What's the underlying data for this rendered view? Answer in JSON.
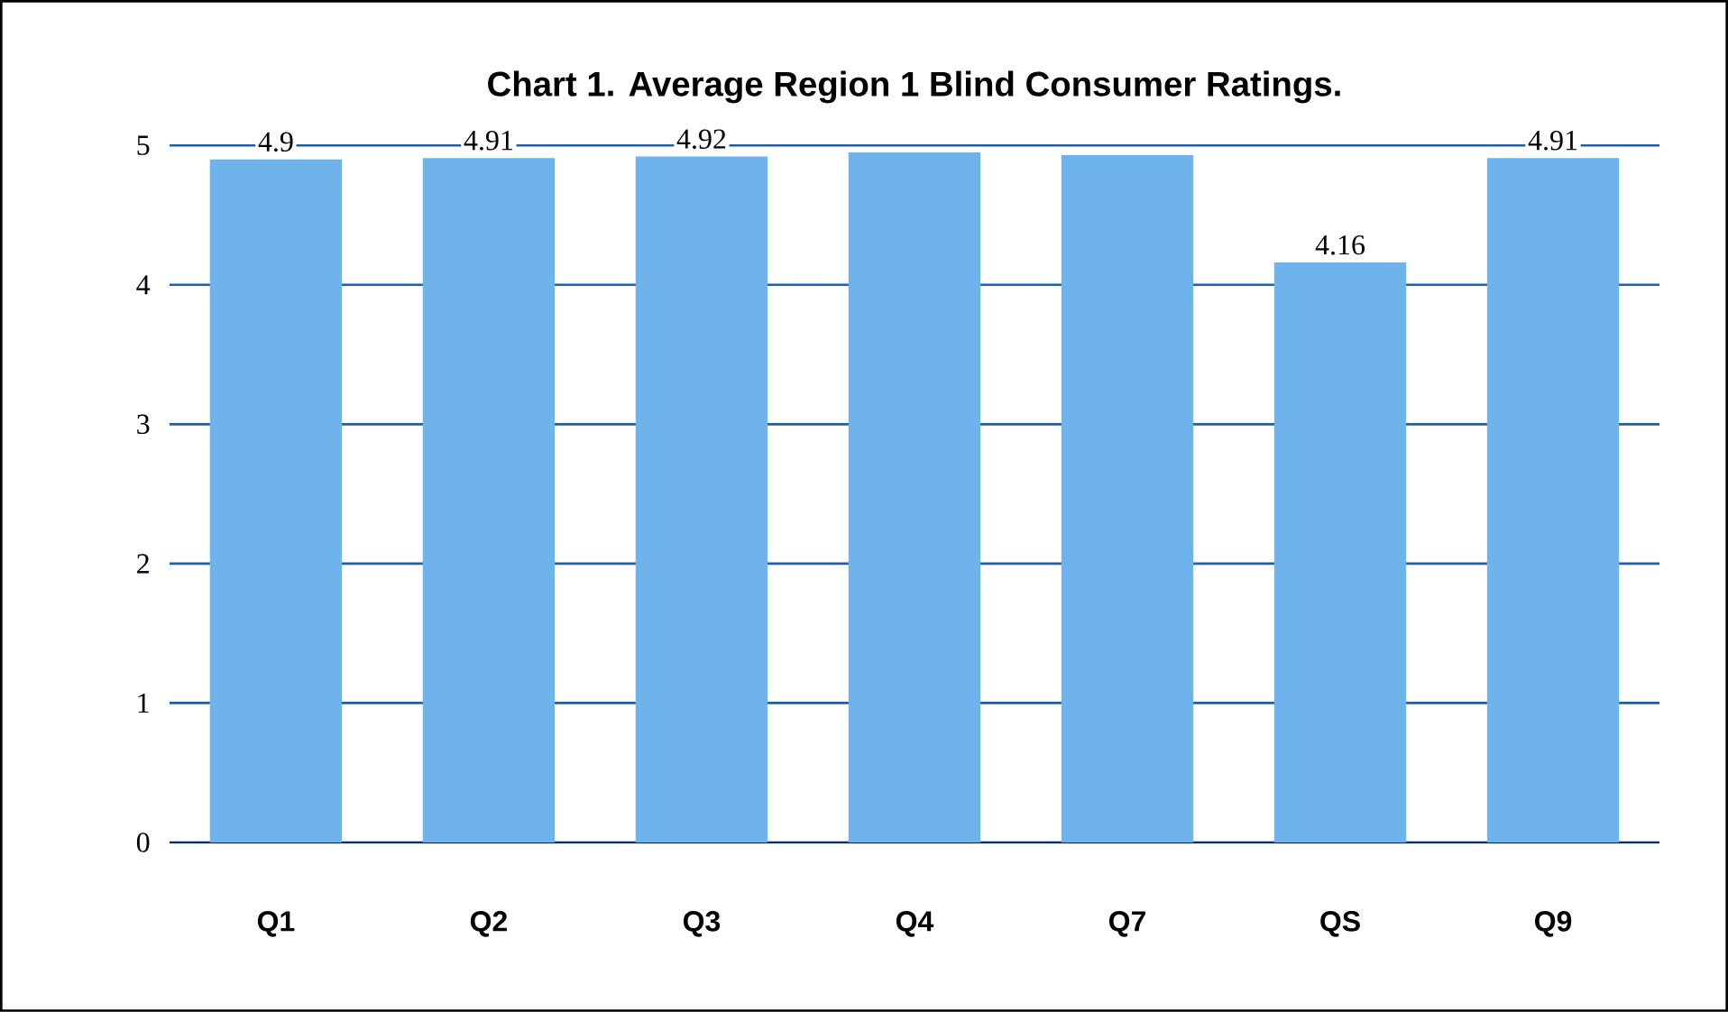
{
  "chart_data": {
    "type": "bar",
    "title": "Chart 1.  Average Region 1 Blind Consumer Ratings.",
    "categories": [
      "Q1",
      "Q2",
      "Q3",
      "Q4",
      "Q7",
      "QS",
      "Q9"
    ],
    "values": [
      4.9,
      4.91,
      4.92,
      4.95,
      4.93,
      4.16,
      4.91
    ],
    "value_labels": [
      "4.9",
      "4.91",
      "4.92",
      null,
      null,
      "4.16",
      "4.91"
    ],
    "color": "#6fb3ec",
    "ylim": [
      0,
      5
    ],
    "yticks": [
      0,
      1,
      2,
      3,
      4,
      5
    ],
    "grid": "y"
  }
}
